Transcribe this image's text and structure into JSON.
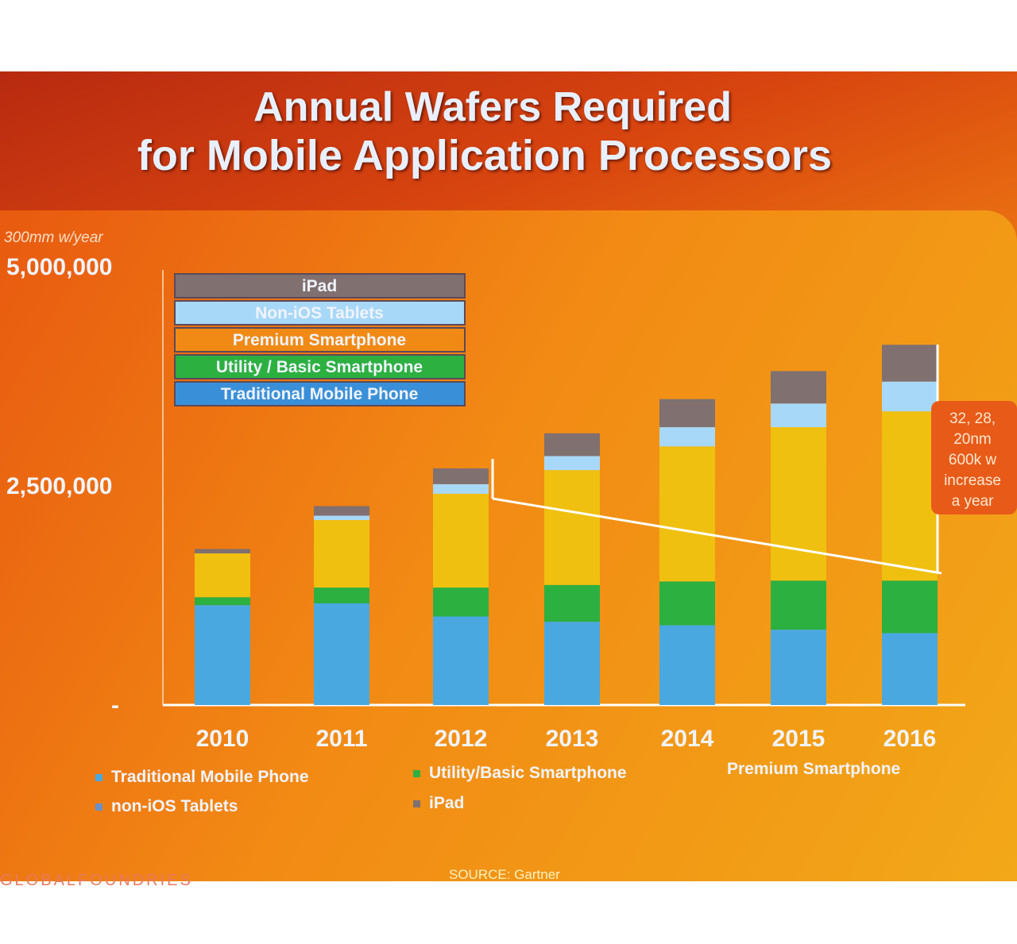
{
  "slide": {
    "title_line1": "Annual Wafers Required",
    "title_line2": "for Mobile Application Processors",
    "source": "SOURCE: Gartner",
    "footer_logo": "GLOBALFOUNDRIES",
    "annotation": [
      "32, 28,",
      "20nm",
      "600k w",
      "increase",
      "a year"
    ]
  },
  "chart_data": {
    "type": "bar",
    "stacked": true,
    "title": "Annual Wafers Required for Mobile Application Processors",
    "ylabel": "300mm w/year",
    "ylim": [
      0,
      5000000
    ],
    "yticks": [
      {
        "value": 0,
        "label": "-"
      },
      {
        "value": 2500000,
        "label": "2,500,000"
      },
      {
        "value": 5000000,
        "label": "5,000,000"
      }
    ],
    "categories": [
      "2010",
      "2011",
      "2012",
      "2013",
      "2014",
      "2015",
      "2016"
    ],
    "series": [
      {
        "name": "Traditional Mobile Phone",
        "color": "#4aa8e0",
        "values": [
          1140000,
          1160000,
          1010000,
          950000,
          910000,
          860000,
          820000
        ]
      },
      {
        "name": "Utility / Basic Smartphone",
        "color": "#2cb040",
        "values": [
          90000,
          180000,
          330000,
          420000,
          500000,
          560000,
          600000
        ]
      },
      {
        "name": "Premium Smartphone",
        "color": "#f0c010",
        "values": [
          500000,
          770000,
          1070000,
          1310000,
          1540000,
          1750000,
          1930000
        ]
      },
      {
        "name": "Non-iOS Tablets",
        "color": "#a8d8f8",
        "values": [
          0,
          50000,
          110000,
          160000,
          220000,
          270000,
          340000
        ]
      },
      {
        "name": "iPad",
        "color": "#807070",
        "values": [
          50000,
          110000,
          180000,
          260000,
          320000,
          370000,
          420000
        ]
      }
    ],
    "inset_legend": [
      "iPad",
      "Non-iOS Tablets",
      "Premium Smartphone",
      "Utility / Basic Smartphone",
      "Traditional Mobile Phone"
    ],
    "bottom_legend": [
      "Traditional Mobile Phone",
      "Utility/Basic Smartphone",
      "Premium Smartphone",
      "non-iOS Tablets",
      "iPad"
    ],
    "legend_position": "top-left"
  }
}
